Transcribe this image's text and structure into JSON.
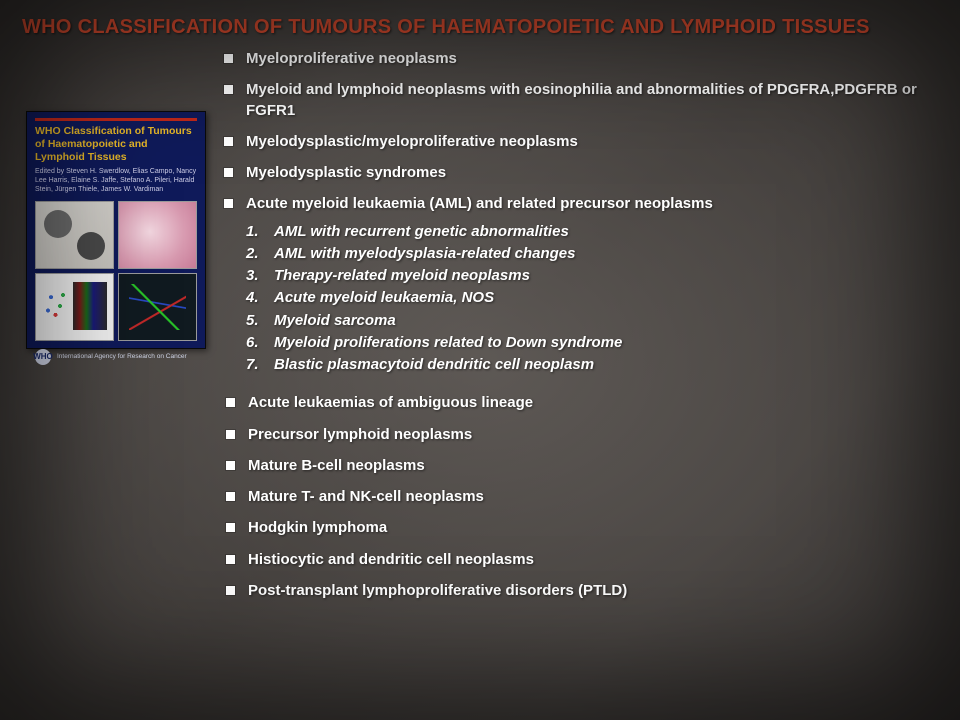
{
  "title": {
    "text": "WHO CLASSIFICATION OF TUMOURS OF HAEMATOPOIETIC AND LYMPHOID TISSUES",
    "color": "#d54a2e",
    "fontsize": 20
  },
  "colors": {
    "body_text": "#ffffff",
    "background_base": "#5a5553",
    "bullet": "#ffffff"
  },
  "book": {
    "title": "WHO Classification of Tumours of Haematopoietic and Lymphoid Tissues",
    "editors": "Edited by Steven H. Swerdlow, Elias Campo, Nancy Lee Harris, Elaine S. Jaffe, Stefano A. Pileri, Harald Stein, Jürgen Thiele, James W. Vardiman",
    "logo": "WHO",
    "footer": "International Agency for Research on Cancer",
    "cover_bg": "#0f1a5a",
    "strip_color": "#c0281a",
    "title_color": "#e8b828"
  },
  "upper_bullets": [
    "Myeloproliferative neoplasms",
    "Myeloid and lymphoid neoplasms with eosinophilia and abnormalities of PDGFRA,PDGFRB or FGFR1",
    "Myelodysplastic/myeloproliferative neoplasms",
    "Myelodysplastic syndromes",
    "Acute myeloid leukaemia (AML) and related precursor neoplasms"
  ],
  "numbered": [
    "AML with recurrent genetic abnormalities",
    "AML with myelodysplasia-related changes",
    "Therapy-related myeloid neoplasms",
    "Acute myeloid leukaemia, NOS",
    "Myeloid sarcoma",
    "Myeloid proliferations related to Down syndrome",
    "Blastic plasmacytoid dendritic cell neoplasm"
  ],
  "lower_bullets": [
    "Acute leukaemias of ambiguous lineage",
    "Precursor lymphoid neoplasms",
    "Mature B-cell neoplasms",
    "Mature T- and NK-cell neoplasms",
    "Hodgkin lymphoma",
    "Histiocytic and dendritic cell neoplasms",
    "Post-transplant lymphoproliferative disorders (PTLD)"
  ]
}
